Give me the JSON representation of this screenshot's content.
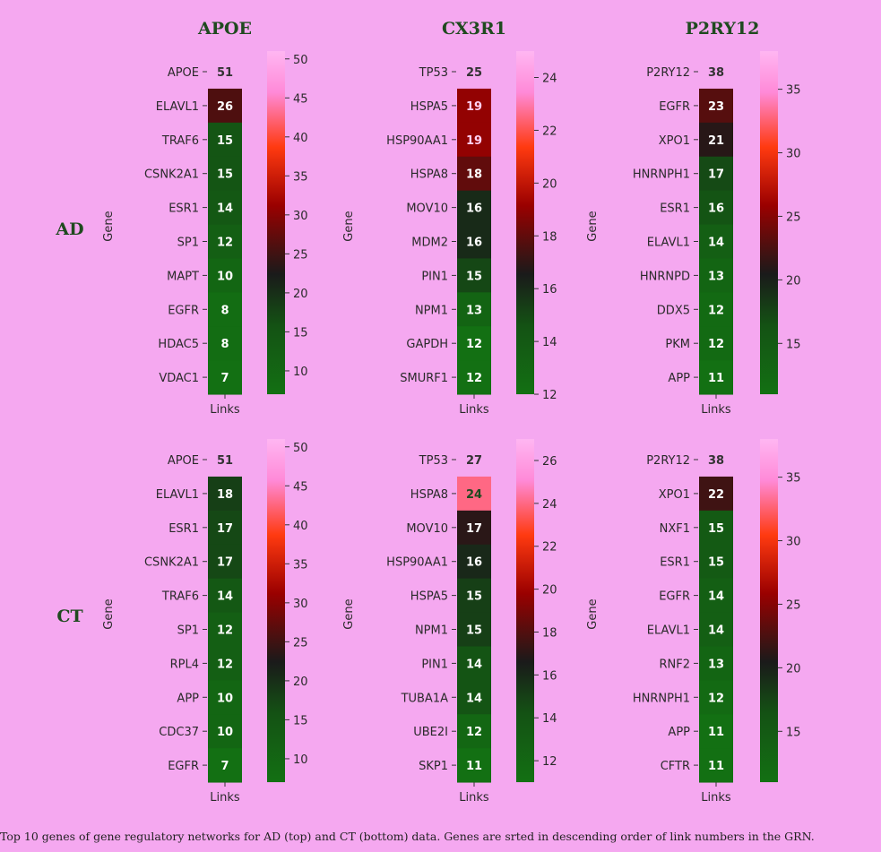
{
  "caption": "Top 10 genes of gene regulatory networks for AD (top) and CT (bottom) data. Genes are srted in descending order of link numbers in the GRN.",
  "colors": {
    "low": "#137013",
    "mid": "#1a1a1a",
    "midhigh": "#a00000",
    "high": "#ff3a10",
    "top": "#ff8ad8",
    "max": "#ffb6f2"
  },
  "chart_data": [
    {
      "type": "heatmap",
      "panel": "AD-APOE",
      "row_label": "AD",
      "title": "APOE",
      "ylabel": "Gene",
      "xlabel": "Links",
      "genes": [
        "APOE",
        "ELAVL1",
        "TRAF6",
        "CSNK2A1",
        "ESR1",
        "SP1",
        "MAPT",
        "EGFR",
        "HDAC5",
        "VDAC1"
      ],
      "values": [
        51,
        26,
        15,
        15,
        14,
        12,
        10,
        8,
        8,
        7
      ],
      "colorbar_ticks": [
        10,
        15,
        20,
        25,
        30,
        35,
        40,
        45,
        50
      ],
      "vmin": 7,
      "vmax": 51
    },
    {
      "type": "heatmap",
      "panel": "AD-CX3R1",
      "row_label": "AD",
      "title": "CX3R1",
      "ylabel": "Gene",
      "xlabel": "Links",
      "genes": [
        "TP53",
        "HSPA5",
        "HSP90AA1",
        "HSPA8",
        "MOV10",
        "MDM2",
        "PIN1",
        "NPM1",
        "GAPDH",
        "SMURF1"
      ],
      "values": [
        25,
        19,
        19,
        18,
        16,
        16,
        15,
        13,
        12,
        12
      ],
      "colorbar_ticks": [
        12,
        14,
        16,
        18,
        20,
        22,
        24
      ],
      "vmin": 12,
      "vmax": 25
    },
    {
      "type": "heatmap",
      "panel": "AD-P2RY12",
      "row_label": "AD",
      "title": "P2RY12",
      "ylabel": "Gene",
      "xlabel": "Links",
      "genes": [
        "P2RY12",
        "EGFR",
        "XPO1",
        "HNRNPH1",
        "ESR1",
        "ELAVL1",
        "HNRNPD",
        "DDX5",
        "PKM",
        "APP"
      ],
      "values": [
        38,
        23,
        21,
        17,
        16,
        14,
        13,
        12,
        12,
        11
      ],
      "colorbar_ticks": [
        15,
        20,
        25,
        30,
        35
      ],
      "vmin": 11,
      "vmax": 38
    },
    {
      "type": "heatmap",
      "panel": "CT-APOE",
      "row_label": "CT",
      "title": "",
      "ylabel": "Gene",
      "xlabel": "Links",
      "genes": [
        "APOE",
        "ELAVL1",
        "ESR1",
        "CSNK2A1",
        "TRAF6",
        "SP1",
        "RPL4",
        "APP",
        "CDC37",
        "EGFR"
      ],
      "values": [
        51,
        18,
        17,
        17,
        14,
        12,
        12,
        10,
        10,
        7
      ],
      "colorbar_ticks": [
        10,
        15,
        20,
        25,
        30,
        35,
        40,
        45,
        50
      ],
      "vmin": 7,
      "vmax": 51
    },
    {
      "type": "heatmap",
      "panel": "CT-CX3R1",
      "row_label": "CT",
      "title": "",
      "ylabel": "Gene",
      "xlabel": "Links",
      "genes": [
        "TP53",
        "HSPA8",
        "MOV10",
        "HSP90AA1",
        "HSPA5",
        "NPM1",
        "PIN1",
        "TUBA1A",
        "UBE2I",
        "SKP1"
      ],
      "values": [
        27,
        24,
        17,
        16,
        15,
        15,
        14,
        14,
        12,
        11
      ],
      "colorbar_ticks": [
        12,
        14,
        16,
        18,
        20,
        22,
        24,
        26
      ],
      "vmin": 11,
      "vmax": 27
    },
    {
      "type": "heatmap",
      "panel": "CT-P2RY12",
      "row_label": "CT",
      "title": "",
      "ylabel": "Gene",
      "xlabel": "Links",
      "genes": [
        "P2RY12",
        "XPO1",
        "NXF1",
        "ESR1",
        "EGFR",
        "ELAVL1",
        "RNF2",
        "HNRNPH1",
        "APP",
        "CFTR"
      ],
      "values": [
        38,
        22,
        15,
        15,
        14,
        14,
        13,
        12,
        11,
        11
      ],
      "colorbar_ticks": [
        15,
        20,
        25,
        30,
        35
      ],
      "vmin": 11,
      "vmax": 38
    }
  ]
}
